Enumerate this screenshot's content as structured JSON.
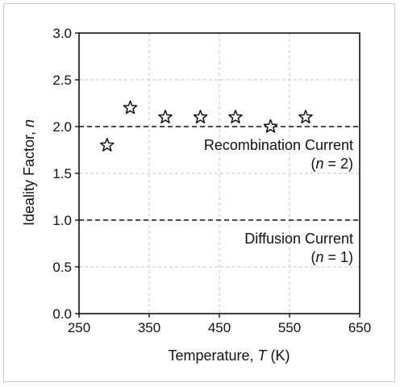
{
  "chart_data": {
    "type": "scatter",
    "xlabel": {
      "prefix": "Temperature, ",
      "var": "T",
      "suffix": " (K)"
    },
    "ylabel": {
      "prefix": "Ideality Factor, ",
      "var": "n"
    },
    "xlim": [
      250,
      650
    ],
    "ylim": [
      0,
      3
    ],
    "xticks": [
      250,
      350,
      450,
      550,
      650
    ],
    "yticks": [
      "0.0",
      "0.5",
      "1.0",
      "1.5",
      "2.0",
      "2.5",
      "3.0"
    ],
    "grid": true,
    "marker": "star",
    "points": [
      {
        "x": 290,
        "y": 1.8
      },
      {
        "x": 323,
        "y": 2.2
      },
      {
        "x": 373,
        "y": 2.1
      },
      {
        "x": 423,
        "y": 2.1
      },
      {
        "x": 473,
        "y": 2.1
      },
      {
        "x": 523,
        "y": 2.0
      },
      {
        "x": 573,
        "y": 2.1
      }
    ],
    "reference_lines": [
      {
        "y": 2.0,
        "style": "dashed",
        "label_line1": "Recombination Current",
        "label_line2": {
          "open": "(",
          "var": "n",
          "rest": " = 2)"
        }
      },
      {
        "y": 1.0,
        "style": "dashed",
        "label_line1": "Diffusion Current",
        "label_line2": {
          "open": "(",
          "var": "n",
          "rest": " = 1)"
        }
      }
    ]
  }
}
